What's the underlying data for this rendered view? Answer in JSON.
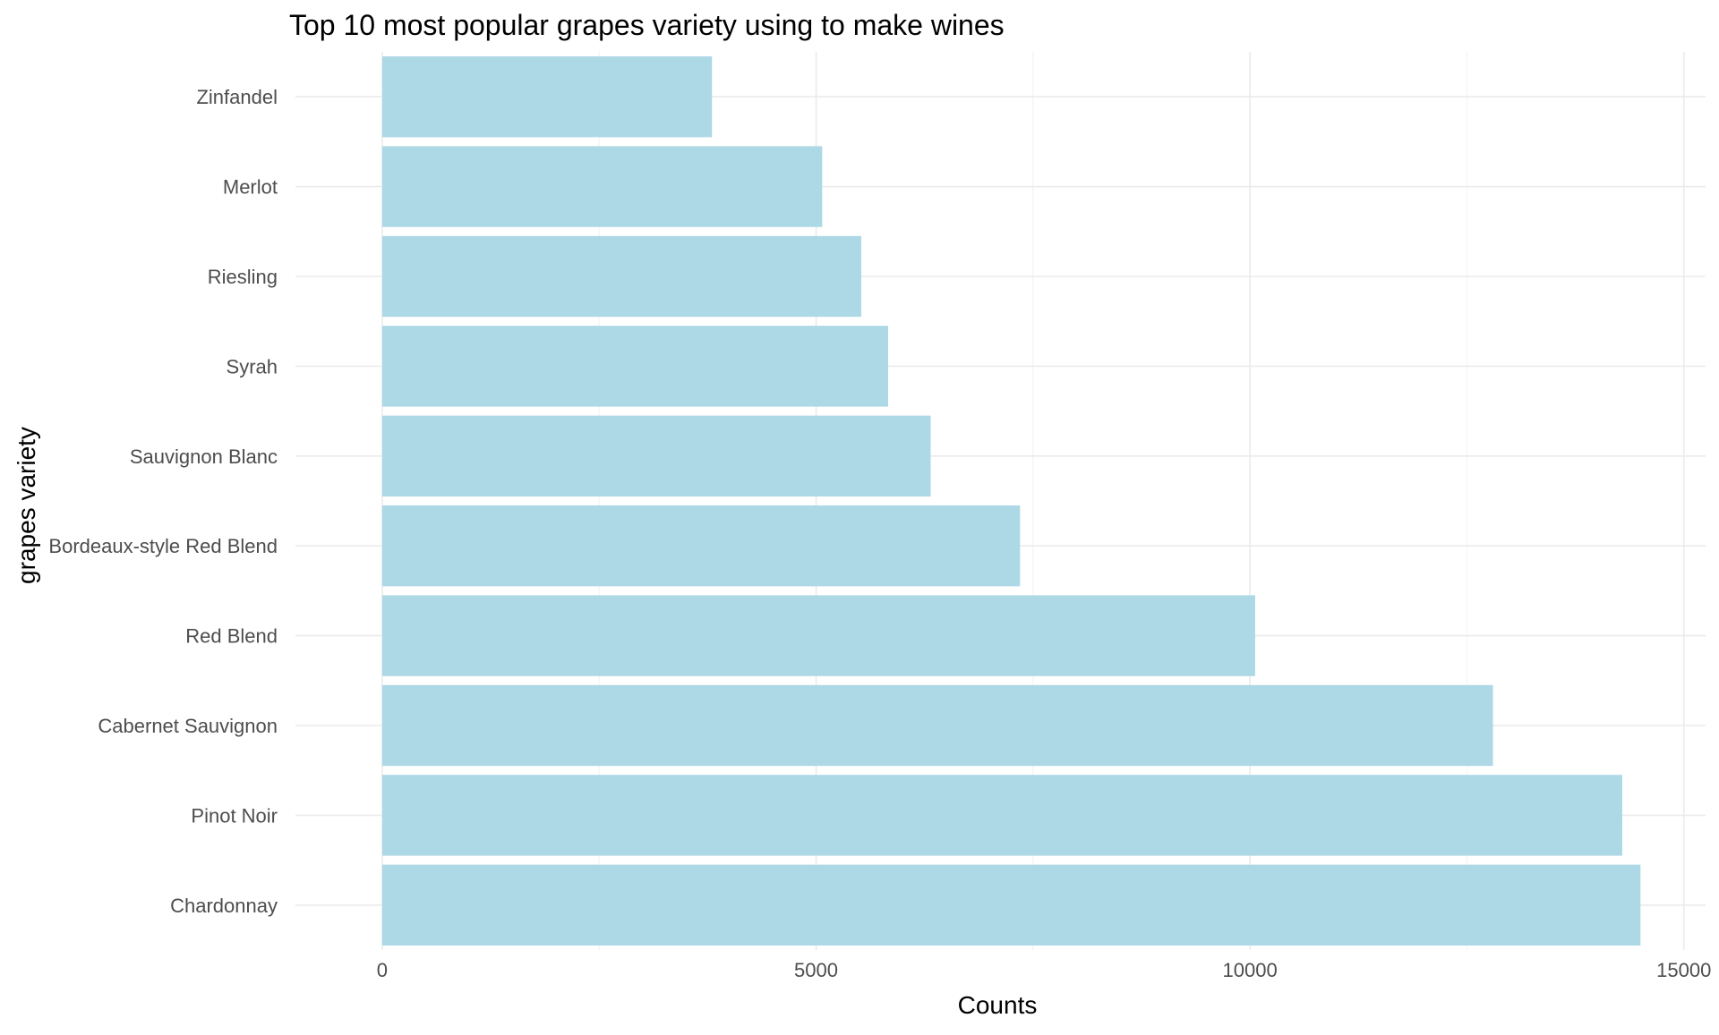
{
  "chart_data": {
    "type": "bar",
    "orientation": "horizontal",
    "title": "Top 10 most popular grapes variety using to make wines",
    "xlabel": "Counts",
    "ylabel": "grapes variety",
    "categories": [
      "Zinfandel",
      "Merlot",
      "Riesling",
      "Syrah",
      "Sauvignon Blanc",
      "Bordeaux-style Red Blend",
      "Red Blend",
      "Cabernet Sauvignon",
      "Pinot Noir",
      "Chardonnay"
    ],
    "values": [
      3800,
      5070,
      5520,
      5830,
      6320,
      7350,
      10060,
      12800,
      14290,
      14500
    ],
    "xlim": [
      -1000,
      15250
    ],
    "xticks": [
      0,
      5000,
      10000,
      15000
    ],
    "xtick_labels": [
      "0",
      "5000",
      "10000",
      "15000"
    ],
    "grid": true,
    "legend": "none",
    "colors": {
      "bar": "#add8e6",
      "grid_major": "#ebebeb",
      "grid_minor": "#f4f4f4",
      "tick_text": "#4d4d4d",
      "title_text": "#000000"
    }
  }
}
